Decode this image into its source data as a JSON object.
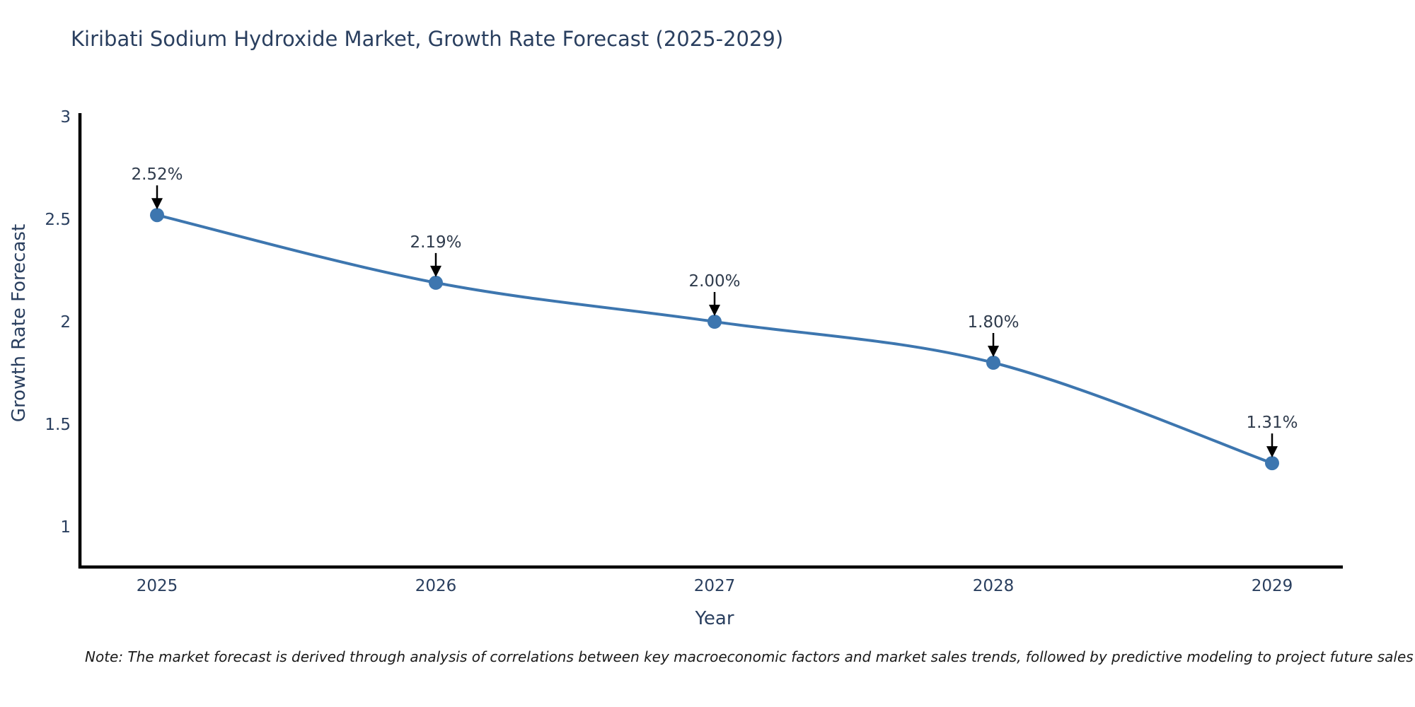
{
  "title": "Kiribati Sodium Hydroxide Market, Growth Rate Forecast (2025-2029)",
  "note": "Note: The market forecast is derived through analysis of correlations between key macroeconomic factors and market sales trends, followed by predictive modeling to project future sales",
  "chart_data": {
    "type": "line",
    "title": "Kiribati Sodium Hydroxide Market, Growth Rate Forecast (2025-2029)",
    "xlabel": "Year",
    "ylabel": "Growth Rate Forecast",
    "x": [
      2025,
      2026,
      2027,
      2028,
      2029
    ],
    "values": [
      2.52,
      2.19,
      2.0,
      1.8,
      1.31
    ],
    "point_labels": [
      "2.52%",
      "2.19%",
      "2.00%",
      "1.80%",
      "1.31%"
    ],
    "xticks": [
      "2025",
      "2026",
      "2027",
      "2028",
      "2029"
    ],
    "yticks": [
      3,
      2.5,
      2,
      1.5,
      1
    ],
    "ylim": [
      0.8,
      3.02
    ],
    "line_shape": "spline",
    "grid": false,
    "legend": "none",
    "colors": {
      "line": "#3d76af",
      "marker": "#3d76af",
      "axis": "#000000",
      "tick_text": "#2a3f5f",
      "annotation_text": "#2f3b4c",
      "annotation_arrow": "#000000",
      "title_text": "#2a3f5f"
    }
  }
}
